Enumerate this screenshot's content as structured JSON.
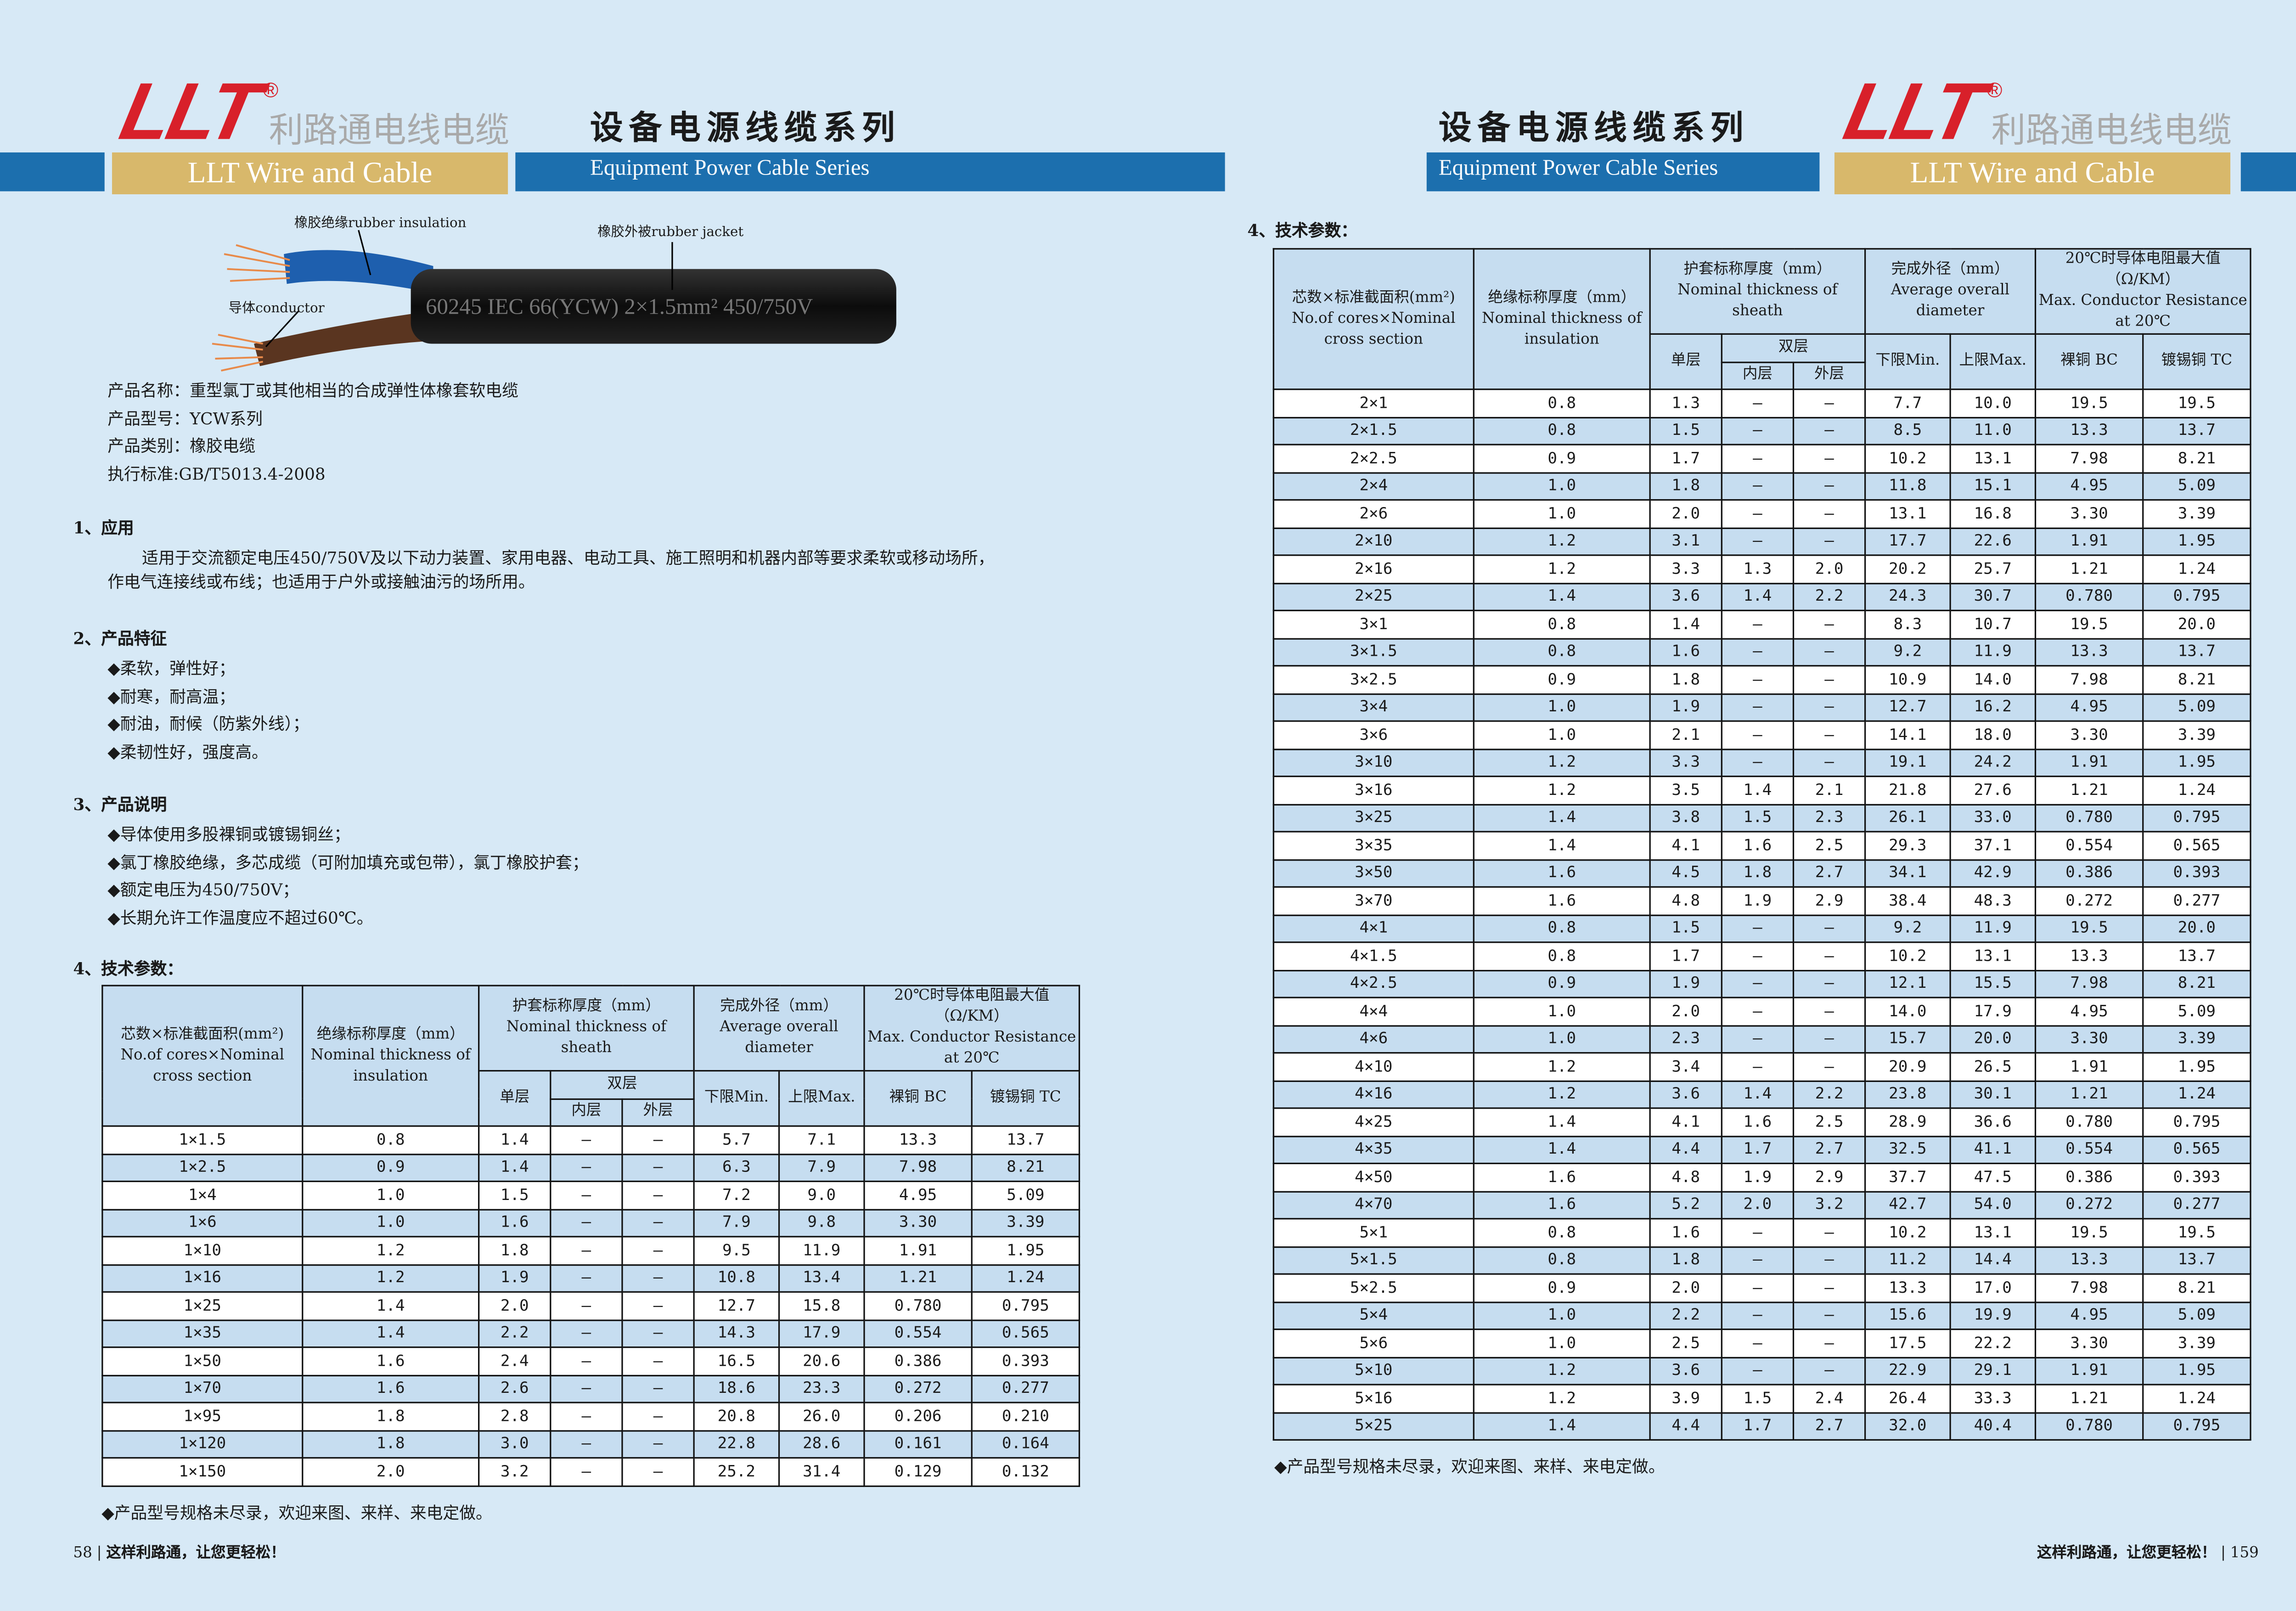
{
  "header": {
    "logo": "LLT",
    "registered": "®",
    "brand_cn": "利路通电线电缆",
    "brand_en": "LLT Wire and Cable",
    "series_cn": "设备电源线缆系列",
    "series_en": "Equipment Power Cable Series"
  },
  "table_header": {
    "cores": "芯数×标准截面积(mm²)",
    "cores_en": "No.of cores×Nominal cross section",
    "insulation": "绝缘标称厚度（mm）",
    "insulation_en": "Nominal thickness of insulation",
    "sheath": "护套标称厚度（mm）",
    "sheath_en": "Nominal thickness of sheath",
    "single": "单层",
    "double": "双层",
    "inner": "内层",
    "outer": "外层",
    "diameter": "完成外径（mm）",
    "diameter_en": "Average overall diameter",
    "min": "下限Min.",
    "max": "上限Max.",
    "resistance": "20℃时导体电阻最大值（Ω/KM）",
    "resistance_en": "Max. Conductor Resistance at 20℃",
    "bc": "裸铜 BC",
    "tc": "镀锡铜 TC"
  },
  "left_page": {
    "product_image": {
      "insulation_label": "橡胶绝缘rubber insulation",
      "jacket_label": "橡胶外被rubber jacket",
      "conductor_label": "导体conductor",
      "print_text": "60245 IEC 66(YCW) 2×1.5mm² 450/750V"
    },
    "product_info": [
      "产品名称：重型氯丁或其他相当的合成弹性体橡套软电缆",
      "产品型号：YCW系列",
      "产品类别：橡胶电缆",
      "执行标准:GB/T5013.4-2008"
    ],
    "sections": [
      {
        "title": "1、应用",
        "lines": [
          "适用于交流额定电压450/750V及以下动力装置、家用电器、电动工具、施工照明和机器内部等要求柔软或移动场所，",
          "作电气连接线或布线；也适用于户外或接触油污的场所用。"
        ]
      },
      {
        "title": "2、产品特征",
        "lines": [
          "◆柔软，弹性好；",
          "◆耐寒，耐高温；",
          "◆耐油，耐候（防紫外线）；",
          "◆柔韧性好，强度高。"
        ]
      },
      {
        "title": "3、产品说明",
        "lines": [
          "◆导体使用多股裸铜或镀锡铜丝；",
          "◆氯丁橡胶绝缘，多芯成缆（可附加填充或包带），氯丁橡胶护套；",
          "◆额定电压为450/750V；",
          "◆长期允许工作温度应不超过60℃。"
        ]
      }
    ],
    "tech_title": "4、技术参数：",
    "table_rows": [
      [
        "1×1.5",
        "0.8",
        "1.4",
        "—",
        "—",
        "5.7",
        "7.1",
        "13.3",
        "13.7"
      ],
      [
        "1×2.5",
        "0.9",
        "1.4",
        "—",
        "—",
        "6.3",
        "7.9",
        "7.98",
        "8.21"
      ],
      [
        "1×4",
        "1.0",
        "1.5",
        "—",
        "—",
        "7.2",
        "9.0",
        "4.95",
        "5.09"
      ],
      [
        "1×6",
        "1.0",
        "1.6",
        "—",
        "—",
        "7.9",
        "9.8",
        "3.30",
        "3.39"
      ],
      [
        "1×10",
        "1.2",
        "1.8",
        "—",
        "—",
        "9.5",
        "11.9",
        "1.91",
        "1.95"
      ],
      [
        "1×16",
        "1.2",
        "1.9",
        "—",
        "—",
        "10.8",
        "13.4",
        "1.21",
        "1.24"
      ],
      [
        "1×25",
        "1.4",
        "2.0",
        "—",
        "—",
        "12.7",
        "15.8",
        "0.780",
        "0.795"
      ],
      [
        "1×35",
        "1.4",
        "2.2",
        "—",
        "—",
        "14.3",
        "17.9",
        "0.554",
        "0.565"
      ],
      [
        "1×50",
        "1.6",
        "2.4",
        "—",
        "—",
        "16.5",
        "20.6",
        "0.386",
        "0.393"
      ],
      [
        "1×70",
        "1.6",
        "2.6",
        "—",
        "—",
        "18.6",
        "23.3",
        "0.272",
        "0.277"
      ],
      [
        "1×95",
        "1.8",
        "2.8",
        "—",
        "—",
        "20.8",
        "26.0",
        "0.206",
        "0.210"
      ],
      [
        "1×120",
        "1.8",
        "3.0",
        "—",
        "—",
        "22.8",
        "28.6",
        "0.161",
        "0.164"
      ],
      [
        "1×150",
        "2.0",
        "3.2",
        "—",
        "—",
        "25.2",
        "31.4",
        "0.129",
        "0.132"
      ]
    ],
    "note": "◆产品型号规格未尽录，欢迎来图、来样、来电定做。",
    "footer": {
      "page": "58",
      "slogan": "这样利路通，让您更轻松！"
    }
  },
  "right_page": {
    "tech_title": "4、技术参数：",
    "table_rows": [
      [
        "2×1",
        "0.8",
        "1.3",
        "—",
        "—",
        "7.7",
        "10.0",
        "19.5",
        "19.5"
      ],
      [
        "2×1.5",
        "0.8",
        "1.5",
        "—",
        "—",
        "8.5",
        "11.0",
        "13.3",
        "13.7"
      ],
      [
        "2×2.5",
        "0.9",
        "1.7",
        "—",
        "—",
        "10.2",
        "13.1",
        "7.98",
        "8.21"
      ],
      [
        "2×4",
        "1.0",
        "1.8",
        "—",
        "—",
        "11.8",
        "15.1",
        "4.95",
        "5.09"
      ],
      [
        "2×6",
        "1.0",
        "2.0",
        "—",
        "—",
        "13.1",
        "16.8",
        "3.30",
        "3.39"
      ],
      [
        "2×10",
        "1.2",
        "3.1",
        "—",
        "—",
        "17.7",
        "22.6",
        "1.91",
        "1.95"
      ],
      [
        "2×16",
        "1.2",
        "3.3",
        "1.3",
        "2.0",
        "20.2",
        "25.7",
        "1.21",
        "1.24"
      ],
      [
        "2×25",
        "1.4",
        "3.6",
        "1.4",
        "2.2",
        "24.3",
        "30.7",
        "0.780",
        "0.795"
      ],
      [
        "3×1",
        "0.8",
        "1.4",
        "—",
        "—",
        "8.3",
        "10.7",
        "19.5",
        "20.0"
      ],
      [
        "3×1.5",
        "0.8",
        "1.6",
        "—",
        "—",
        "9.2",
        "11.9",
        "13.3",
        "13.7"
      ],
      [
        "3×2.5",
        "0.9",
        "1.8",
        "—",
        "—",
        "10.9",
        "14.0",
        "7.98",
        "8.21"
      ],
      [
        "3×4",
        "1.0",
        "1.9",
        "—",
        "—",
        "12.7",
        "16.2",
        "4.95",
        "5.09"
      ],
      [
        "3×6",
        "1.0",
        "2.1",
        "—",
        "—",
        "14.1",
        "18.0",
        "3.30",
        "3.39"
      ],
      [
        "3×10",
        "1.2",
        "3.3",
        "—",
        "—",
        "19.1",
        "24.2",
        "1.91",
        "1.95"
      ],
      [
        "3×16",
        "1.2",
        "3.5",
        "1.4",
        "2.1",
        "21.8",
        "27.6",
        "1.21",
        "1.24"
      ],
      [
        "3×25",
        "1.4",
        "3.8",
        "1.5",
        "2.3",
        "26.1",
        "33.0",
        "0.780",
        "0.795"
      ],
      [
        "3×35",
        "1.4",
        "4.1",
        "1.6",
        "2.5",
        "29.3",
        "37.1",
        "0.554",
        "0.565"
      ],
      [
        "3×50",
        "1.6",
        "4.5",
        "1.8",
        "2.7",
        "34.1",
        "42.9",
        "0.386",
        "0.393"
      ],
      [
        "3×70",
        "1.6",
        "4.8",
        "1.9",
        "2.9",
        "38.4",
        "48.3",
        "0.272",
        "0.277"
      ],
      [
        "4×1",
        "0.8",
        "1.5",
        "—",
        "—",
        "9.2",
        "11.9",
        "19.5",
        "20.0"
      ],
      [
        "4×1.5",
        "0.8",
        "1.7",
        "—",
        "—",
        "10.2",
        "13.1",
        "13.3",
        "13.7"
      ],
      [
        "4×2.5",
        "0.9",
        "1.9",
        "—",
        "—",
        "12.1",
        "15.5",
        "7.98",
        "8.21"
      ],
      [
        "4×4",
        "1.0",
        "2.0",
        "—",
        "—",
        "14.0",
        "17.9",
        "4.95",
        "5.09"
      ],
      [
        "4×6",
        "1.0",
        "2.3",
        "—",
        "—",
        "15.7",
        "20.0",
        "3.30",
        "3.39"
      ],
      [
        "4×10",
        "1.2",
        "3.4",
        "—",
        "—",
        "20.9",
        "26.5",
        "1.91",
        "1.95"
      ],
      [
        "4×16",
        "1.2",
        "3.6",
        "1.4",
        "2.2",
        "23.8",
        "30.1",
        "1.21",
        "1.24"
      ],
      [
        "4×25",
        "1.4",
        "4.1",
        "1.6",
        "2.5",
        "28.9",
        "36.6",
        "0.780",
        "0.795"
      ],
      [
        "4×35",
        "1.4",
        "4.4",
        "1.7",
        "2.7",
        "32.5",
        "41.1",
        "0.554",
        "0.565"
      ],
      [
        "4×50",
        "1.6",
        "4.8",
        "1.9",
        "2.9",
        "37.7",
        "47.5",
        "0.386",
        "0.393"
      ],
      [
        "4×70",
        "1.6",
        "5.2",
        "2.0",
        "3.2",
        "42.7",
        "54.0",
        "0.272",
        "0.277"
      ],
      [
        "5×1",
        "0.8",
        "1.6",
        "—",
        "—",
        "10.2",
        "13.1",
        "19.5",
        "19.5"
      ],
      [
        "5×1.5",
        "0.8",
        "1.8",
        "—",
        "—",
        "11.2",
        "14.4",
        "13.3",
        "13.7"
      ],
      [
        "5×2.5",
        "0.9",
        "2.0",
        "—",
        "—",
        "13.3",
        "17.0",
        "7.98",
        "8.21"
      ],
      [
        "5×4",
        "1.0",
        "2.2",
        "—",
        "—",
        "15.6",
        "19.9",
        "4.95",
        "5.09"
      ],
      [
        "5×6",
        "1.0",
        "2.5",
        "—",
        "—",
        "17.5",
        "22.2",
        "3.30",
        "3.39"
      ],
      [
        "5×10",
        "1.2",
        "3.6",
        "—",
        "—",
        "22.9",
        "29.1",
        "1.91",
        "1.95"
      ],
      [
        "5×16",
        "1.2",
        "3.9",
        "1.5",
        "2.4",
        "26.4",
        "33.3",
        "1.21",
        "1.24"
      ],
      [
        "5×25",
        "1.4",
        "4.4",
        "1.7",
        "2.7",
        "32.0",
        "40.4",
        "0.780",
        "0.795"
      ]
    ],
    "note": "◆产品型号规格未尽录，欢迎来图、来样、来电定做。",
    "footer": {
      "page": "159",
      "slogan": "这样利路通，让您更轻松！"
    }
  }
}
